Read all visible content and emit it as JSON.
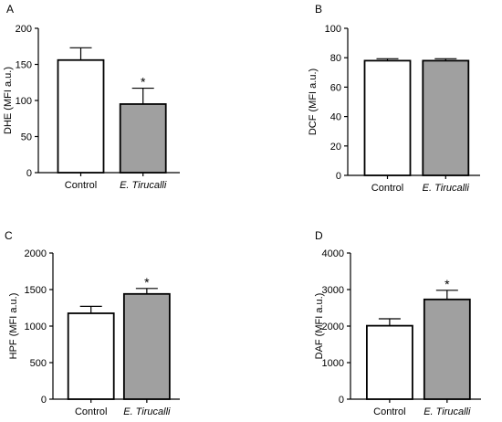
{
  "chart_data": [
    {
      "panel": "A",
      "type": "bar",
      "ylabel": "DHE (MFI a.u.)",
      "categories": [
        "Control",
        "E. Tirucalli"
      ],
      "values": [
        156,
        95
      ],
      "errors": [
        17,
        22
      ],
      "significance": [
        "",
        "*"
      ],
      "ylim": [
        0,
        200
      ],
      "yticks": [
        0,
        50,
        100,
        150,
        200
      ],
      "colors": [
        "#ffffff",
        "#a0a0a0"
      ]
    },
    {
      "panel": "B",
      "type": "bar",
      "ylabel": "DCF (MFI a.u.)",
      "categories": [
        "Control",
        "E. Tirucalli"
      ],
      "values": [
        78,
        78
      ],
      "errors": [
        1.3,
        1.3
      ],
      "significance": [
        "",
        ""
      ],
      "ylim": [
        0,
        100
      ],
      "yticks": [
        0,
        20,
        40,
        60,
        80,
        100
      ],
      "colors": [
        "#ffffff",
        "#a0a0a0"
      ]
    },
    {
      "panel": "C",
      "type": "bar",
      "ylabel": "HPF (MFI a.u.)",
      "categories": [
        "Control",
        "E. Tirucalli"
      ],
      "values": [
        1175,
        1440
      ],
      "errors": [
        95,
        75
      ],
      "significance": [
        "",
        "*"
      ],
      "ylim": [
        0,
        2000
      ],
      "yticks": [
        0,
        500,
        1000,
        1500,
        2000
      ],
      "colors": [
        "#ffffff",
        "#a0a0a0"
      ]
    },
    {
      "panel": "D",
      "type": "bar",
      "ylabel": "DAF (MFI a.u.)",
      "categories": [
        "Control",
        "E. Tirucalli"
      ],
      "values": [
        2010,
        2730
      ],
      "errors": [
        190,
        250
      ],
      "significance": [
        "",
        "*"
      ],
      "ylim": [
        0,
        4000
      ],
      "yticks": [
        0,
        1000,
        2000,
        3000,
        4000
      ],
      "colors": [
        "#ffffff",
        "#a0a0a0"
      ]
    }
  ]
}
